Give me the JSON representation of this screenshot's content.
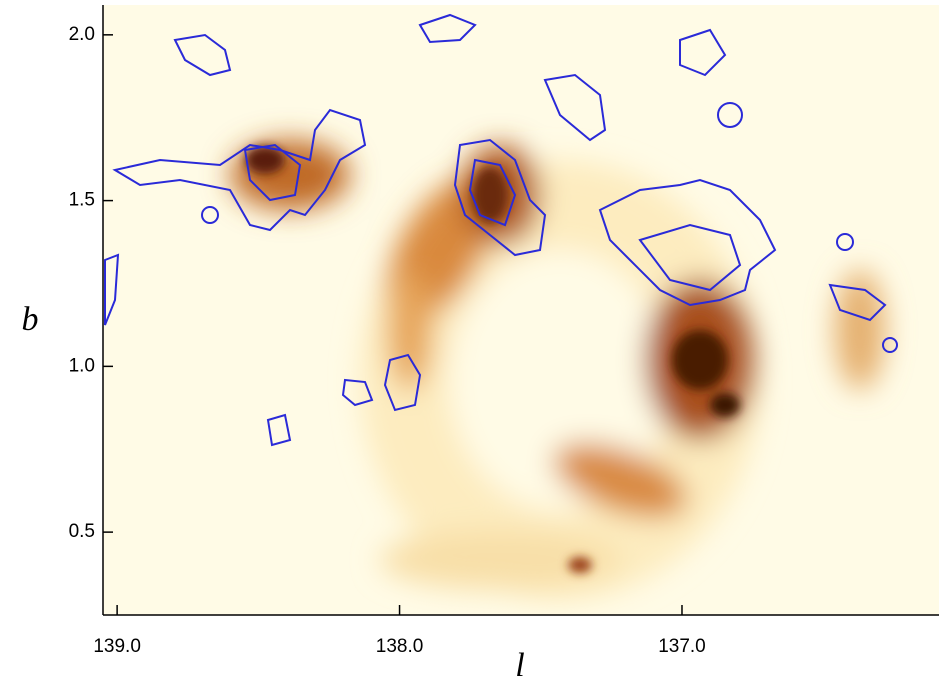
{
  "chart_data": {
    "type": "image",
    "xlabel": "l",
    "ylabel": "b",
    "xlim": [
      139.05,
      136.09
    ],
    "ylim": [
      0.25,
      2.09
    ],
    "xticks": [
      {
        "value": 139,
        "label": "139.0"
      },
      {
        "value": 138,
        "label": "138.0"
      },
      {
        "value": 137,
        "label": "137.0"
      }
    ],
    "yticks": [
      0.5,
      {
        "value": 1,
        "label": "1.0"
      },
      1.5,
      {
        "value": 2,
        "label": "2.0"
      }
    ],
    "contour_color": "#2a2ad8"
  }
}
